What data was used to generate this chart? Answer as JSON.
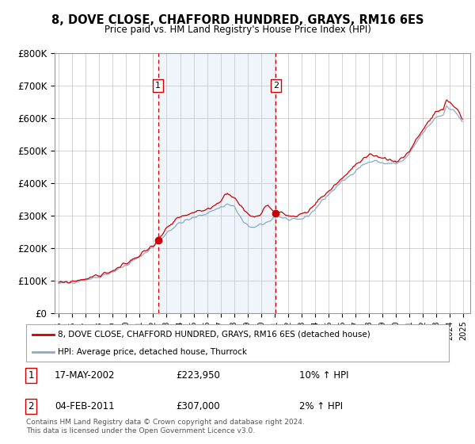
{
  "title": "8, DOVE CLOSE, CHAFFORD HUNDRED, GRAYS, RM16 6ES",
  "subtitle": "Price paid vs. HM Land Registry's House Price Index (HPI)",
  "legend_line1": "8, DOVE CLOSE, CHAFFORD HUNDRED, GRAYS, RM16 6ES (detached house)",
  "legend_line2": "HPI: Average price, detached house, Thurrock",
  "footnote": "Contains HM Land Registry data © Crown copyright and database right 2024.\nThis data is licensed under the Open Government Licence v3.0.",
  "sale1_date_label": "17-MAY-2002",
  "sale1_year": 2002.37,
  "sale1_price": 223950,
  "sale1_hpi_pct": "10% ↑ HPI",
  "sale2_date_label": "04-FEB-2011",
  "sale2_year": 2011.09,
  "sale2_price": 307000,
  "sale2_hpi_pct": "2% ↑ HPI",
  "background_color": "#ffffff",
  "plot_bg_color": "#ffffff",
  "grid_color": "#cccccc",
  "red_line_color": "#cc0000",
  "blue_line_color": "#88aacc",
  "shade_color": "#ddeeff",
  "dashed_line_color": "#cc0000",
  "marker_box_color": "#cc0000",
  "ylim": [
    0,
    800000
  ],
  "yticks": [
    0,
    100000,
    200000,
    300000,
    400000,
    500000,
    600000,
    700000,
    800000
  ],
  "ytick_labels": [
    "£0",
    "£100K",
    "£200K",
    "£300K",
    "£400K",
    "£500K",
    "£600K",
    "£700K",
    "£800K"
  ],
  "xlim_start": 1994.7,
  "xlim_end": 2025.5
}
